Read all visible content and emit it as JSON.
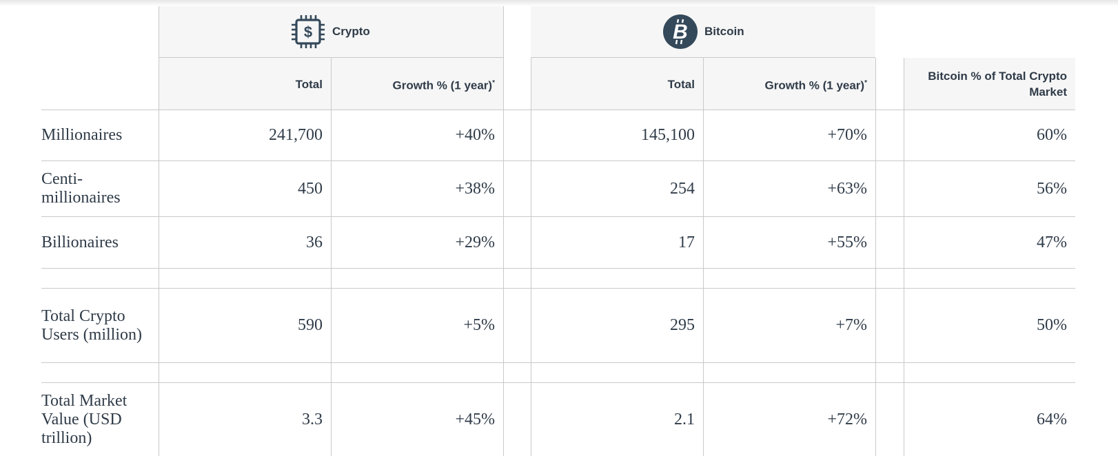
{
  "groups": {
    "crypto": {
      "title": "Crypto",
      "icon": "dollar-chip-icon"
    },
    "bitcoin": {
      "title": "Bitcoin",
      "icon": "bitcoin-icon"
    }
  },
  "columns": {
    "crypto_total": "Total",
    "crypto_growth": "Growth % (1 year)",
    "bitcoin_total": "Total",
    "bitcoin_growth": "Growth % (1 year)",
    "share": "Bitcoin % of Total Crypto Market",
    "footnote_mark": "*"
  },
  "rows": [
    {
      "label": "Millionaires",
      "crypto_total": "241,700",
      "crypto_growth": "+40%",
      "bitcoin_total": "145,100",
      "bitcoin_growth": "+70%",
      "share": "60%"
    },
    {
      "label": "Centi-millionaires",
      "crypto_total": "450",
      "crypto_growth": "+38%",
      "bitcoin_total": "254",
      "bitcoin_growth": "+63%",
      "share": "56%"
    },
    {
      "label": "Billionaires",
      "crypto_total": "36",
      "crypto_growth": "+29%",
      "bitcoin_total": "17",
      "bitcoin_growth": "+55%",
      "share": "47%"
    },
    {
      "label": "Total Crypto Users (million)",
      "crypto_total": "590",
      "crypto_growth": "+5%",
      "bitcoin_total": "295",
      "bitcoin_growth": "+7%",
      "share": "50%"
    },
    {
      "label": "Total Market Value (USD trillion)",
      "crypto_total": "3.3",
      "crypto_growth": "+45%",
      "bitcoin_total": "2.1",
      "bitcoin_growth": "+72%",
      "share": "64%"
    }
  ],
  "colors": {
    "text": "#2f3b48",
    "header_bg": "#f6f6f6",
    "border": "#c9c9c9",
    "icon": "#34495a"
  }
}
